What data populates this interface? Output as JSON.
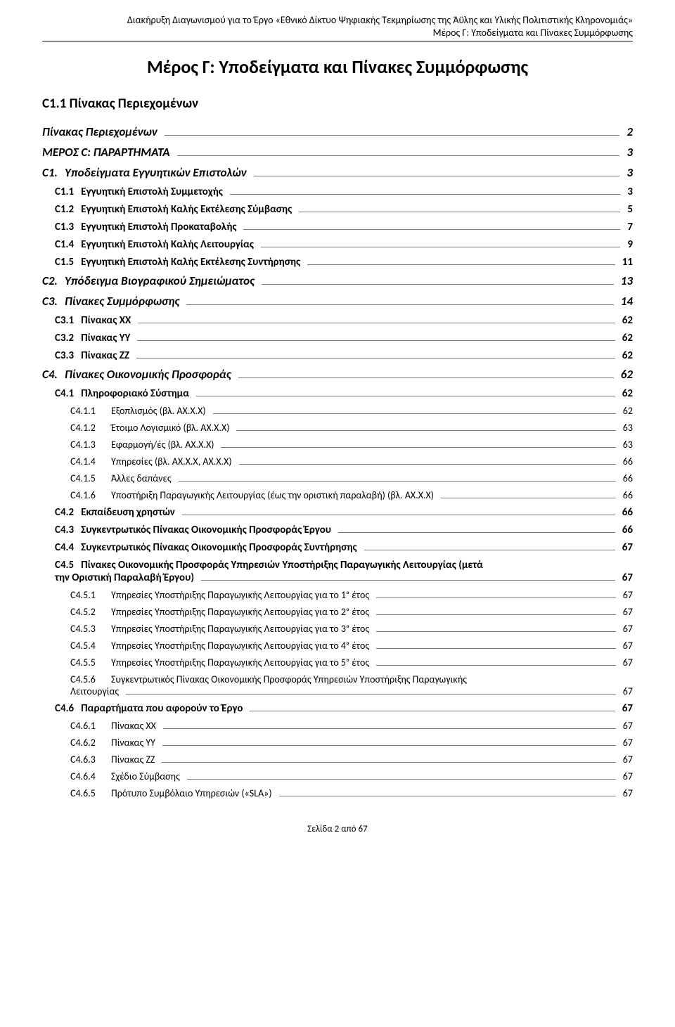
{
  "header": {
    "line1": "Διακήρυξη Διαγωνισμού για το Έργο «Εθνικό Δίκτυο Ψηφιακής Τεκμηρίωσης της Άϋλης και Υλικής Πολιτιστικής Κληρονομιάς»",
    "line2": "Μέρος Γ: Υποδείγματα και Πίνακες Συμμόρφωσης"
  },
  "title": "Μέρος Γ: Υποδείγματα και Πίνακες Συμμόρφωσης",
  "section_heading": "C1.1   Πίνακας Περιεχομένων",
  "toc": [
    {
      "lvl": 0,
      "num": "",
      "label": "Πίνακας Περιεχομένων",
      "page": "2",
      "first": true,
      "nonum": true
    },
    {
      "lvl": 0,
      "num": "",
      "label": "ΜΕΡΟΣ C: ΠΑΡΑΡΤΗΜΑΤΑ",
      "page": "3",
      "nonum": true
    },
    {
      "lvl": 0,
      "num": "C1.",
      "label": "Υποδείγματα Εγγυητικών Επιστολών",
      "page": "3"
    },
    {
      "lvl": 1,
      "num": "C1.1",
      "label": "Εγγυητική Επιστολή Συμμετοχής",
      "page": "3"
    },
    {
      "lvl": 1,
      "num": "C1.2",
      "label": "Εγγυητική Επιστολή Καλής Εκτέλεσης Σύμβασης",
      "page": "5"
    },
    {
      "lvl": 1,
      "num": "C1.3",
      "label": "Εγγυητική Επιστολή Προκαταβολής",
      "page": "7"
    },
    {
      "lvl": 1,
      "num": "C1.4",
      "label": "Εγγυητική Επιστολή Καλής Λειτουργίας",
      "page": "9"
    },
    {
      "lvl": 1,
      "num": "C1.5",
      "label": "Εγγυητική Επιστολή Καλής Εκτέλεσης Συντήρησης",
      "page": "11"
    },
    {
      "lvl": 0,
      "num": "C2.",
      "label": "Υπόδειγμα Βιογραφικού Σημειώματος",
      "page": "13"
    },
    {
      "lvl": 0,
      "num": "C3.",
      "label": "Πίνακες Συμμόρφωσης",
      "page": "14"
    },
    {
      "lvl": 1,
      "num": "C3.1",
      "label": "Πίνακας ΧΧ",
      "page": "62"
    },
    {
      "lvl": 1,
      "num": "C3.2",
      "label": "Πίνακας ΥΥ",
      "page": "62"
    },
    {
      "lvl": 1,
      "num": "C3.3",
      "label": "Πίνακας ΖΖ",
      "page": "62"
    },
    {
      "lvl": 0,
      "num": "C4.",
      "label": "Πίνακες Οικονομικής Προσφοράς",
      "page": "62"
    },
    {
      "lvl": 1,
      "num": "C4.1",
      "label": "Πληροφοριακό Σύστημα",
      "page": "62"
    },
    {
      "lvl": 2,
      "num": "C4.1.1",
      "label": "Εξοπλισμός (βλ. ΑΧ.Χ.Χ)",
      "page": "62"
    },
    {
      "lvl": 2,
      "num": "C4.1.2",
      "label": "Έτοιμο Λογισμικό (βλ. ΑΧ.Χ.Χ)",
      "page": "63"
    },
    {
      "lvl": 2,
      "num": "C4.1.3",
      "label": "Εφαρμογή/ές (βλ. ΑΧ.Χ.Χ)",
      "page": "63"
    },
    {
      "lvl": 2,
      "num": "C4.1.4",
      "label": "Υπηρεσίες (βλ. ΑΧ.Χ.Χ, ΑΧ.Χ.Χ)",
      "page": "66"
    },
    {
      "lvl": 2,
      "num": "C4.1.5",
      "label": "Άλλες δαπάνες",
      "page": "66"
    },
    {
      "lvl": 2,
      "num": "C4.1.6",
      "label": "Υποστήριξη Παραγωγικής Λειτουργίας (έως την οριστική παραλαβή) (βλ. ΑΧ.Χ.Χ)",
      "page": "66"
    },
    {
      "lvl": 1,
      "num": "C4.2",
      "label": "Εκπαίδευση χρηστών",
      "page": "66"
    },
    {
      "lvl": 1,
      "num": "C4.3",
      "label": "Συγκεντρωτικός Πίνακας Οικονομικής Προσφοράς Έργου",
      "page": "66"
    },
    {
      "lvl": 1,
      "num": "C4.4",
      "label": "Συγκεντρωτικός Πίνακας Οικονομικής Προσφοράς Συντήρησης",
      "page": "67"
    },
    {
      "lvl": "1m",
      "num": "C4.5",
      "label1": "Πίνακες Οικονομικής Προσφοράς Υπηρεσιών Υποστήριξης Παραγωγικής Λειτουργίας (μετά",
      "label2": "την Οριστική Παραλαβή Έργου)",
      "page": "67"
    },
    {
      "lvl": 2,
      "num": "C4.5.1",
      "label": "Υπηρεσίες Υποστήριξης Παραγωγικής Λειτουργίας για το 1ᵒ έτος",
      "page": "67"
    },
    {
      "lvl": 2,
      "num": "C4.5.2",
      "label": "Υπηρεσίες Υποστήριξης Παραγωγικής Λειτουργίας για το 2ᵒ έτος",
      "page": "67"
    },
    {
      "lvl": 2,
      "num": "C4.5.3",
      "label": "Υπηρεσίες Υποστήριξης Παραγωγικής Λειτουργίας για το 3ᵒ έτος",
      "page": "67"
    },
    {
      "lvl": 2,
      "num": "C4.5.4",
      "label": "Υπηρεσίες Υποστήριξης Παραγωγικής Λειτουργίας για το 4ᵒ έτος",
      "page": "67"
    },
    {
      "lvl": 2,
      "num": "C4.5.5",
      "label": "Υπηρεσίες Υποστήριξης Παραγωγικής Λειτουργίας για το 5ᵒ έτος",
      "page": "67"
    },
    {
      "lvl": "2m",
      "num": "C4.5.6",
      "label1": "Συγκεντρωτικός Πίνακας Οικονομικής Προσφοράς Υπηρεσιών Υποστήριξης Παραγωγικής",
      "label2": "Λειτουργίας",
      "page": "67"
    },
    {
      "lvl": 1,
      "num": "C4.6",
      "label": "Παραρτήματα που αφορούν το Έργο",
      "page": "67"
    },
    {
      "lvl": 2,
      "num": "C4.6.1",
      "label": "Πίνακας ΧΧ",
      "page": "67"
    },
    {
      "lvl": 2,
      "num": "C4.6.2",
      "label": "Πίνακας ΥΥ",
      "page": "67"
    },
    {
      "lvl": 2,
      "num": "C4.6.3",
      "label": "Πίνακας ΖΖ",
      "page": "67"
    },
    {
      "lvl": 2,
      "num": "C4.6.4",
      "label": "Σχέδιο Σύμβασης",
      "page": "67"
    },
    {
      "lvl": 2,
      "num": "C4.6.5",
      "label": "Πρότυπο Συμβόλαιο Υπηρεσιών («SLA»)",
      "page": "67"
    }
  ],
  "footer": "Σελίδα 2 από 67"
}
